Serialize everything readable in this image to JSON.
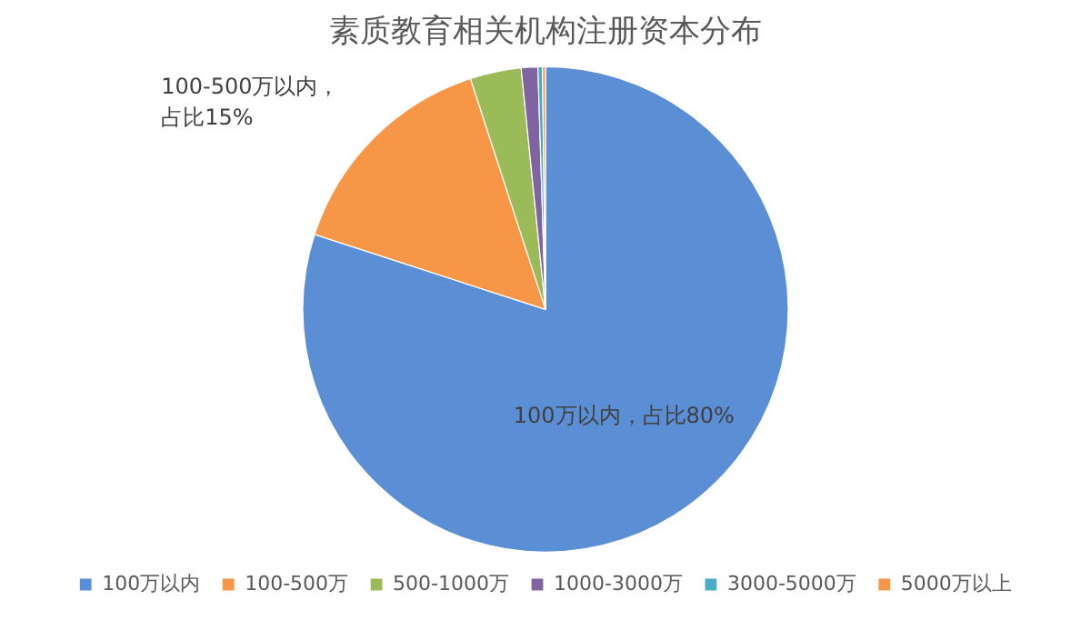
{
  "chart_data": {
    "type": "pie",
    "title": "素质教育相关机构注册资本分布",
    "categories": [
      "100万以内",
      "100-500万",
      "500-1000万",
      "1000-3000万",
      "3000-5000万",
      "5000万以上"
    ],
    "values": [
      80,
      15,
      3.4,
      1.1,
      0.3,
      0.2
    ],
    "colors": [
      "#5a8ed5",
      "#f79646",
      "#9bbb59",
      "#8064a2",
      "#4bacc6",
      "#f79646"
    ],
    "legend": "bottom",
    "annotations": [
      {
        "text": "100-500万以内，占比15%",
        "x": "100-500万"
      },
      {
        "text": "100万以内，占比80%",
        "x": "100万以内"
      }
    ]
  }
}
